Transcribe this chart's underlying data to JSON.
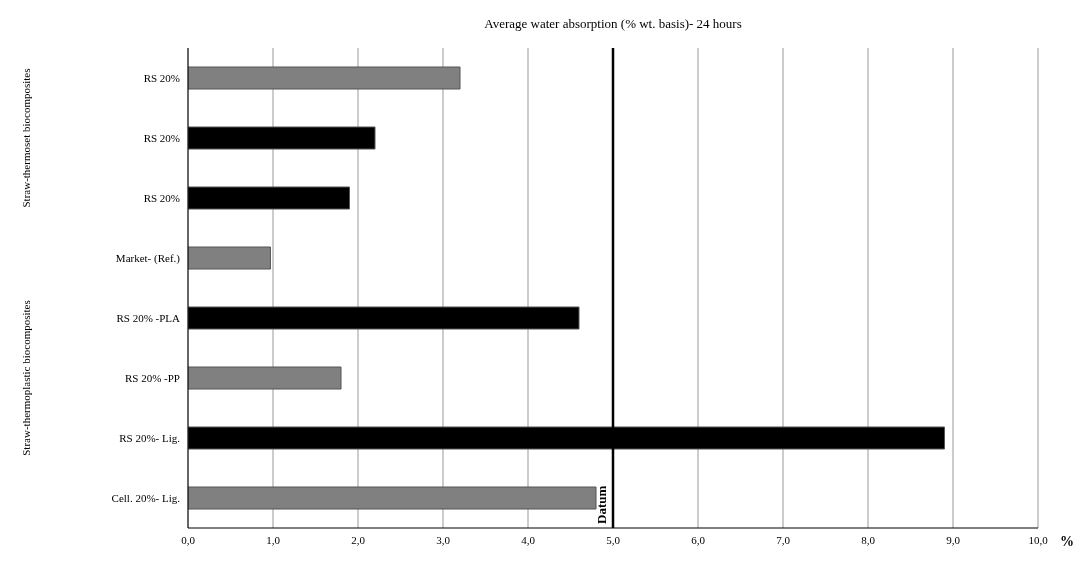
{
  "chart_data": {
    "type": "bar",
    "orientation": "horizontal",
    "title": "Average water absorption (% wt. basis)- 24 hours",
    "xlabel": "%",
    "categories": [
      "RS 20%",
      "RS 20%",
      "RS 20%",
      "Market- (Ref.)",
      "RS 20% -PLA",
      "RS 20% -PP",
      "RS 20%- Lig.",
      "Cell. 20%- Lig."
    ],
    "values": [
      3.2,
      2.2,
      1.9,
      0.97,
      4.6,
      1.8,
      8.9,
      4.8
    ],
    "colors": [
      "#808080",
      "#000000",
      "#000000",
      "#808080",
      "#000000",
      "#808080",
      "#000000",
      "#808080"
    ],
    "xlim": [
      0,
      10
    ],
    "xticks": [
      {
        "value": 0,
        "label": "0,0"
      },
      {
        "value": 1,
        "label": "1,0"
      },
      {
        "value": 2,
        "label": "2,0"
      },
      {
        "value": 3,
        "label": "3,0"
      },
      {
        "value": 4,
        "label": "4,0"
      },
      {
        "value": 5,
        "label": "5,0"
      },
      {
        "value": 6,
        "label": "6,0"
      },
      {
        "value": 7,
        "label": "7,0"
      },
      {
        "value": 8,
        "label": "8,0"
      },
      {
        "value": 9,
        "label": "9,0"
      },
      {
        "value": 10,
        "label": "10,0"
      }
    ],
    "grid": "x",
    "ref_lines": [
      {
        "axis": "x",
        "value": 5,
        "label": "Datum",
        "color": "#000000"
      }
    ],
    "annotations": [
      "Straw-thermoset biocomposites",
      "Straw-thermoplastic biocomposites"
    ]
  }
}
